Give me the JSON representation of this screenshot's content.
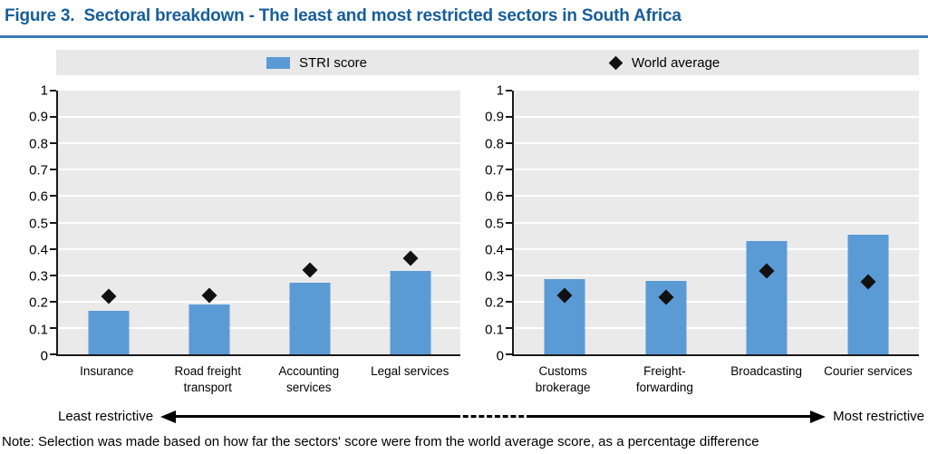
{
  "figure": {
    "title": "Figure 3.  Sectoral breakdown - The least and most restricted sectors in South Africa",
    "note": "Note: Selection was made based on how far the sectors' score were from the world average score, as a percentage difference"
  },
  "legend": {
    "items": [
      {
        "label": "STRI score",
        "marker": "square",
        "color": "#5B9BD5"
      },
      {
        "label": "World average",
        "marker": "diamond",
        "color": "#111111"
      }
    ]
  },
  "axis_annotation": {
    "left": "Least restrictive",
    "right": "Most restrictive"
  },
  "colors": {
    "title_blue": "#175E9A",
    "bar_blue": "#5B9BD5",
    "plot_background": "#EAEAEA",
    "legend_background": "#E8E8E8",
    "gridline": "#FFFFFF",
    "axis": "#1A1A1A"
  },
  "chart_data": [
    {
      "type": "bar",
      "panel": "least-restricted-sectors",
      "categories": [
        "Insurance",
        "Road freight transport",
        "Accounting services",
        "Legal services"
      ],
      "series": [
        {
          "name": "STRI score",
          "type": "bar",
          "values": [
            0.165,
            0.19,
            0.27,
            0.315
          ]
        },
        {
          "name": "World average",
          "type": "scatter-diamond",
          "values": [
            0.22,
            0.225,
            0.32,
            0.365
          ]
        }
      ],
      "ylim": [
        0,
        1
      ],
      "yticks": [
        "0",
        "0.1",
        "0.2",
        "0.3",
        "0.4",
        "0.5",
        "0.6",
        "0.7",
        "0.8",
        "0.9",
        "1"
      ],
      "grid": true,
      "legend_position": "top"
    },
    {
      "type": "bar",
      "panel": "most-restricted-sectors",
      "categories": [
        "Customs brokerage",
        "Freight-forwarding",
        "Broadcasting",
        "Courier services"
      ],
      "series": [
        {
          "name": "STRI score",
          "type": "bar",
          "values": [
            0.285,
            0.28,
            0.43,
            0.455
          ]
        },
        {
          "name": "World average",
          "type": "scatter-diamond",
          "values": [
            0.225,
            0.215,
            0.315,
            0.275
          ]
        }
      ],
      "ylim": [
        0,
        1
      ],
      "yticks": [
        "0",
        "0.1",
        "0.2",
        "0.3",
        "0.4",
        "0.5",
        "0.6",
        "0.7",
        "0.8",
        "0.9",
        "1"
      ],
      "grid": true,
      "legend_position": "top"
    }
  ]
}
